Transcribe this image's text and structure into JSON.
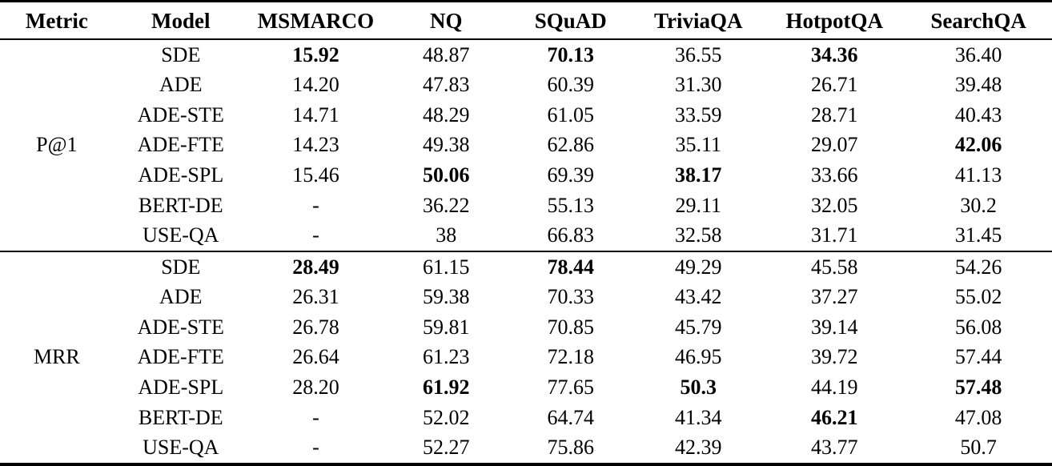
{
  "table": {
    "columns": [
      "Metric",
      "Model",
      "MSMARCO",
      "NQ",
      "SQuAD",
      "TriviaQA",
      "HotpotQA",
      "SearchQA"
    ],
    "sections": [
      {
        "metric": "P@1",
        "rows": [
          {
            "model": "SDE",
            "values": [
              "15.92",
              "48.87",
              "70.13",
              "36.55",
              "34.36",
              "36.40"
            ]
          },
          {
            "model": "ADE",
            "values": [
              "14.20",
              "47.83",
              "60.39",
              "31.30",
              "26.71",
              "39.48"
            ]
          },
          {
            "model": "ADE-STE",
            "values": [
              "14.71",
              "48.29",
              "61.05",
              "33.59",
              "28.71",
              "40.43"
            ]
          },
          {
            "model": "ADE-FTE",
            "values": [
              "14.23",
              "49.38",
              "62.86",
              "35.11",
              "29.07",
              "42.06"
            ]
          },
          {
            "model": "ADE-SPL",
            "values": [
              "15.46",
              "50.06",
              "69.39",
              "38.17",
              "33.66",
              "41.13"
            ]
          },
          {
            "model": "BERT-DE",
            "values": [
              "-",
              "36.22",
              "55.13",
              "29.11",
              "32.05",
              "30.2"
            ]
          },
          {
            "model": "USE-QA",
            "values": [
              "-",
              "38",
              "66.83",
              "32.58",
              "31.71",
              "31.45"
            ]
          }
        ]
      },
      {
        "metric": "MRR",
        "rows": [
          {
            "model": "SDE",
            "values": [
              "28.49",
              "61.15",
              "78.44",
              "49.29",
              "45.58",
              "54.26"
            ]
          },
          {
            "model": "ADE",
            "values": [
              "26.31",
              "59.38",
              "70.33",
              "43.42",
              "37.27",
              "55.02"
            ]
          },
          {
            "model": "ADE-STE",
            "values": [
              "26.78",
              "59.81",
              "70.85",
              "45.79",
              "39.14",
              "56.08"
            ]
          },
          {
            "model": "ADE-FTE",
            "values": [
              "26.64",
              "61.23",
              "72.18",
              "46.95",
              "39.72",
              "57.44"
            ]
          },
          {
            "model": "ADE-SPL",
            "values": [
              "28.20",
              "61.92",
              "77.65",
              "50.3",
              "44.19",
              "57.48"
            ]
          },
          {
            "model": "BERT-DE",
            "values": [
              "-",
              "52.02",
              "64.74",
              "41.34",
              "46.21",
              "47.08"
            ]
          },
          {
            "model": "USE-QA",
            "values": [
              "-",
              "52.27",
              "75.86",
              "42.39",
              "43.77",
              "50.7"
            ]
          }
        ]
      }
    ],
    "bold_cells": {
      "p1": [
        [
          0,
          0
        ],
        [
          0,
          2
        ],
        [
          0,
          4
        ],
        [
          3,
          5
        ],
        [
          4,
          1
        ],
        [
          4,
          3
        ]
      ],
      "mrr": [
        [
          0,
          0
        ],
        [
          0,
          2
        ],
        [
          4,
          1
        ],
        [
          4,
          3
        ],
        [
          4,
          5
        ],
        [
          5,
          4
        ]
      ]
    }
  },
  "chart_data": {
    "type": "table",
    "title": "Retrieval results (P@1 and MRR) per model across QA datasets",
    "columns": [
      "Metric",
      "Model",
      "MSMARCO",
      "NQ",
      "SQuAD",
      "TriviaQA",
      "HotpotQA",
      "SearchQA"
    ]
  }
}
